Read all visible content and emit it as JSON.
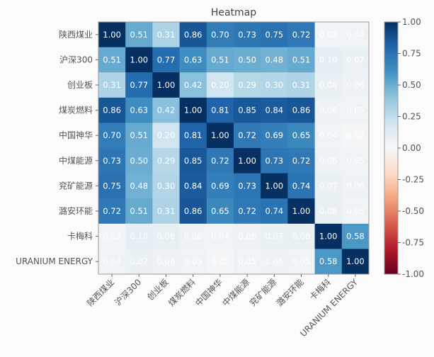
{
  "chart_data": {
    "type": "heatmap",
    "title": "Heatmap",
    "labels": [
      "陕西煤业",
      "沪深300",
      "创业板",
      "煤炭燃料",
      "中国神华",
      "中煤能源",
      "兖矿能源",
      "潞安环能",
      "卡梅科",
      "URANIUM ENERGY"
    ],
    "values": [
      [
        1.0,
        0.51,
        0.31,
        0.86,
        0.7,
        0.73,
        0.75,
        0.72,
        0.03,
        0.04
      ],
      [
        0.51,
        1.0,
        0.77,
        0.63,
        0.51,
        0.5,
        0.48,
        0.51,
        0.1,
        0.07
      ],
      [
        0.31,
        0.77,
        1.0,
        0.42,
        0.2,
        0.29,
        0.3,
        0.31,
        0.08,
        0.06
      ],
      [
        0.86,
        0.63,
        0.42,
        1.0,
        0.81,
        0.85,
        0.84,
        0.86,
        0.06,
        0.05
      ],
      [
        0.7,
        0.51,
        0.2,
        0.81,
        1.0,
        0.72,
        0.69,
        0.65,
        0.04,
        0.02
      ],
      [
        0.73,
        0.5,
        0.29,
        0.85,
        0.72,
        1.0,
        0.73,
        0.72,
        0.06,
        0.05
      ],
      [
        0.75,
        0.48,
        0.3,
        0.84,
        0.69,
        0.73,
        1.0,
        0.74,
        0.07,
        0.06
      ],
      [
        0.72,
        0.51,
        0.31,
        0.86,
        0.65,
        0.72,
        0.74,
        1.0,
        0.08,
        0.05
      ],
      [
        0.03,
        0.1,
        0.08,
        0.06,
        0.04,
        0.06,
        0.07,
        0.08,
        1.0,
        0.58
      ],
      [
        0.04,
        0.07,
        0.06,
        0.05,
        0.02,
        0.05,
        0.06,
        0.05,
        0.58,
        1.0
      ]
    ],
    "colormap": "RdBu",
    "vmin": -1.0,
    "vmax": 1.0,
    "colorbar_ticks": [
      "1.00",
      "0.75",
      "0.50",
      "0.25",
      "0.00",
      "-0.25",
      "-0.50",
      "-0.75",
      "-1.00"
    ],
    "annotation_color": "#ffffff"
  }
}
